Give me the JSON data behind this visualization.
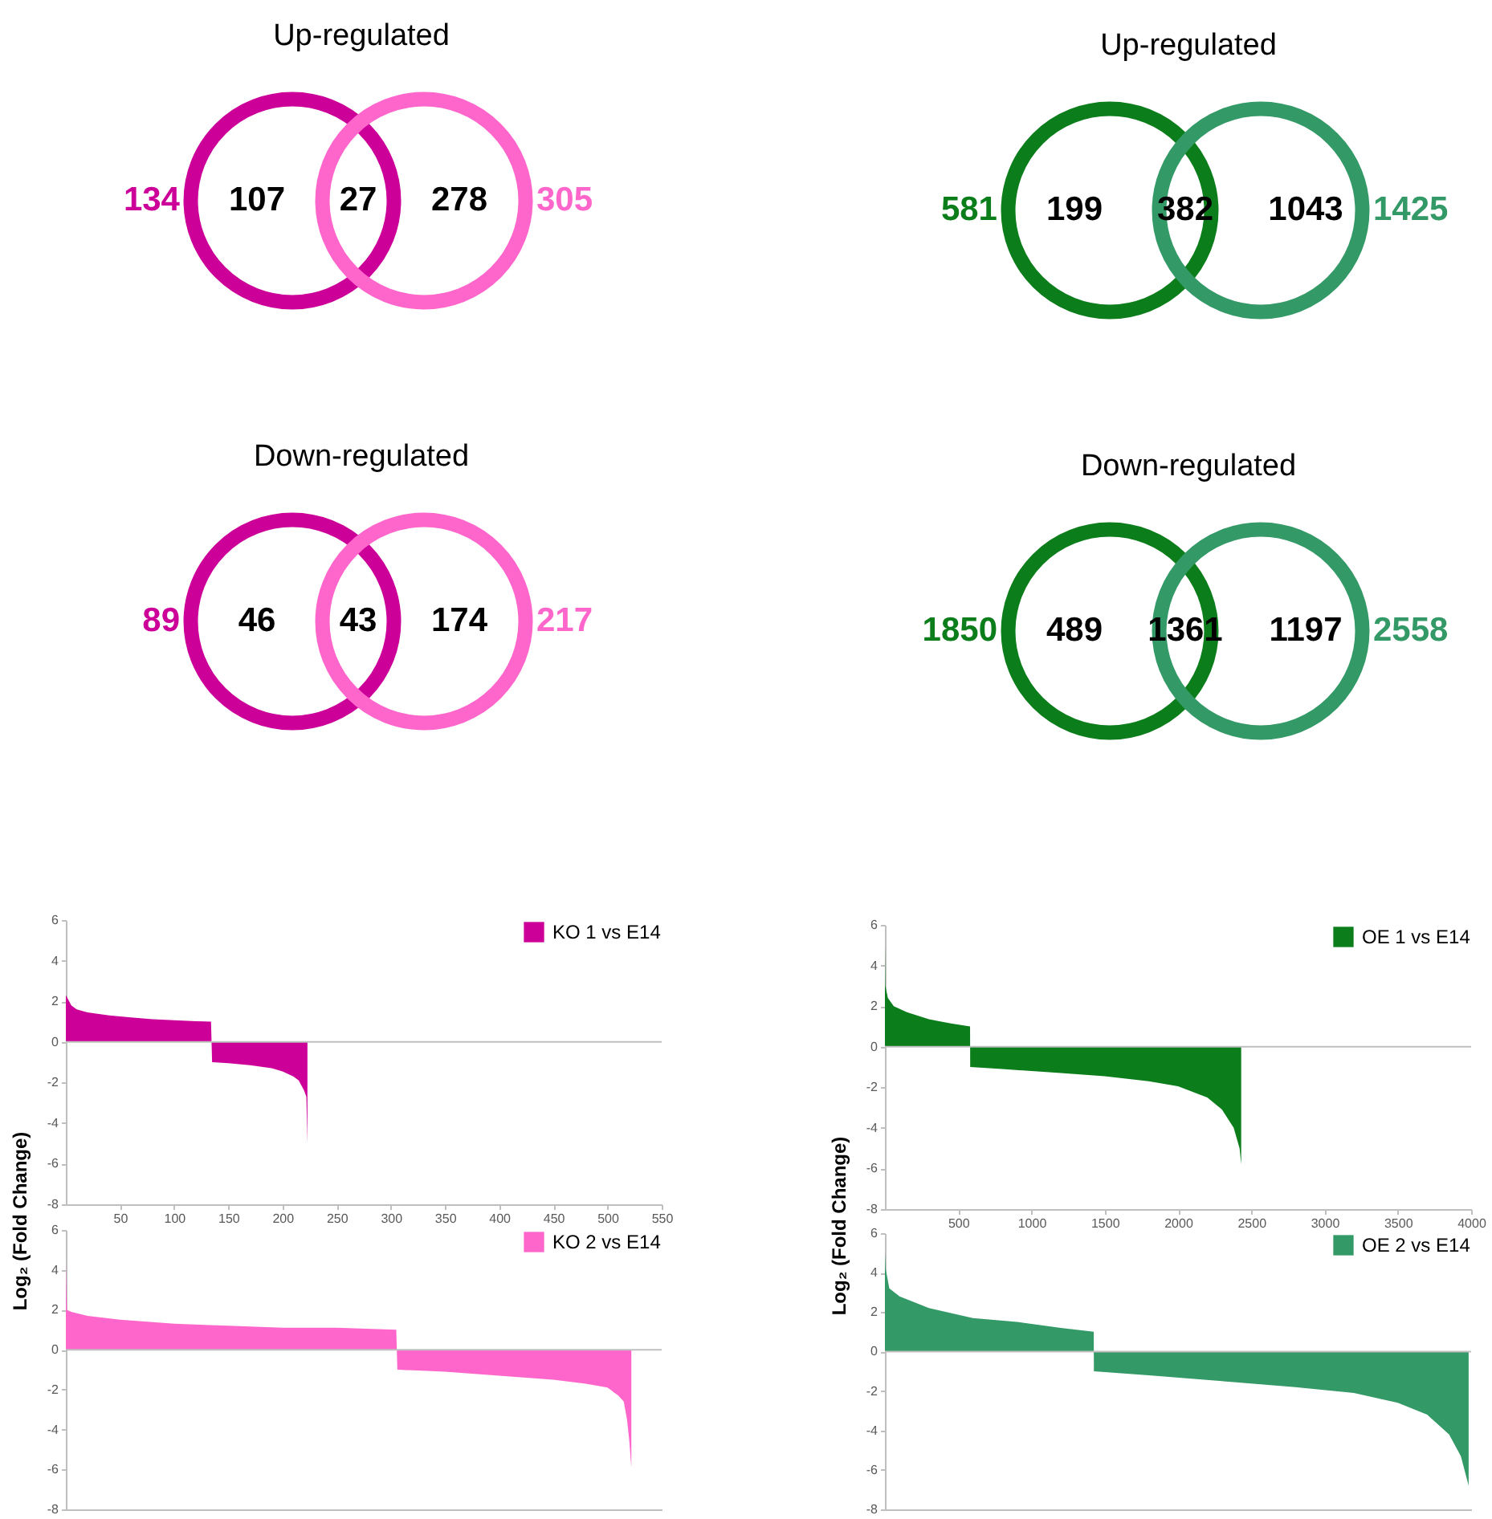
{
  "chart_data": [
    {
      "type": "other",
      "title": "Up-regulated",
      "categories": [
        null,
        null
      ],
      "values": [
        134,
        305
      ],
      "data_labels": true,
      "annotations": [
        "107",
        "27",
        "278"
      ],
      "colors": [
        "#cc0099",
        "#ff66cc"
      ]
    },
    {
      "type": "other",
      "title": "Up-regulated",
      "categories": [
        null,
        null
      ],
      "values": [
        581,
        1425
      ],
      "data_labels": true,
      "annotations": [
        "199",
        "382",
        "1043"
      ],
      "colors": [
        "#0b7d1a",
        "#339966"
      ]
    },
    {
      "type": "other",
      "title": "Down-regulated",
      "categories": [
        null,
        null
      ],
      "values": [
        89,
        217
      ],
      "data_labels": true,
      "annotations": [
        "46",
        "43",
        "174"
      ],
      "colors": [
        "#cc0099",
        "#ff66cc"
      ]
    },
    {
      "type": "other",
      "title": "Down-regulated",
      "categories": [
        null,
        null
      ],
      "values": [
        1850,
        2558
      ],
      "data_labels": true,
      "annotations": [
        "489",
        "1361",
        "1197"
      ],
      "colors": [
        "#0b7d1a",
        "#339966"
      ]
    },
    {
      "type": "area",
      "ylabel": "Log₂ (Fold Change)",
      "xlim": [
        0,
        550
      ],
      "xticks": [
        50,
        100,
        150,
        200,
        250,
        300,
        350,
        400,
        450,
        500,
        550
      ],
      "ylim": [
        -8,
        6
      ],
      "yticks": [
        -8,
        -6,
        -4,
        -2,
        0,
        2,
        4,
        6
      ],
      "legend": "top right",
      "ref_lines": [
        {
          "axis": "y",
          "value": 0,
          "color": "#bfbfbf"
        }
      ],
      "series": [
        {
          "name": "KO 1 vs E14",
          "color": "#cc0099",
          "x": [
            0,
            2,
            5,
            10,
            20,
            40,
            60,
            80,
            100,
            120,
            134,
            135,
            150,
            170,
            190,
            200,
            210,
            215,
            220,
            222,
            223
          ],
          "values": [
            2.3,
            2.1,
            1.8,
            1.6,
            1.45,
            1.3,
            1.2,
            1.12,
            1.07,
            1.02,
            1.0,
            -1.0,
            -1.05,
            -1.15,
            -1.3,
            -1.45,
            -1.7,
            -1.9,
            -2.4,
            -2.7,
            -5.0
          ]
        }
      ]
    },
    {
      "type": "area",
      "xlim": [
        0,
        4000
      ],
      "xticks": [
        500,
        1000,
        1500,
        2000,
        2500,
        3000,
        3500,
        4000
      ],
      "ylim": [
        -8,
        6
      ],
      "yticks": [
        -8,
        -6,
        -4,
        -2,
        0,
        2,
        4,
        6
      ],
      "ylabel": "Log₂ (Fold Change)",
      "legend": "top right",
      "ref_lines": [
        {
          "axis": "y",
          "value": 0,
          "color": "#bfbfbf"
        }
      ],
      "series": [
        {
          "name": "OE 1 vs E14",
          "color": "#0b7d1a",
          "x": [
            0,
            3,
            20,
            60,
            150,
            300,
            450,
            581,
            582,
            800,
            1200,
            1500,
            1800,
            2000,
            2200,
            2300,
            2380,
            2420,
            2431
          ],
          "values": [
            5.0,
            3.0,
            2.4,
            2.0,
            1.7,
            1.35,
            1.15,
            1.0,
            -1.0,
            -1.1,
            -1.3,
            -1.45,
            -1.7,
            -1.95,
            -2.5,
            -3.1,
            -4.0,
            -5.0,
            -5.8
          ]
        }
      ]
    },
    {
      "type": "area",
      "xlim": [
        0,
        550
      ],
      "ylim": [
        -8,
        6
      ],
      "yticks": [
        -8,
        -6,
        -4,
        -2,
        0,
        2,
        4,
        6
      ],
      "tick_labels": "y",
      "legend": "top right",
      "ref_lines": [
        {
          "axis": "y",
          "value": 0,
          "color": "#bfbfbf"
        }
      ],
      "series": [
        {
          "name": "KO 2 vs E14",
          "color": "#ff66cc",
          "x": [
            0,
            1,
            5,
            20,
            50,
            100,
            150,
            200,
            250,
            305,
            306,
            350,
            400,
            450,
            480,
            500,
            510,
            515,
            518,
            520,
            522
          ],
          "values": [
            4.3,
            2.0,
            1.9,
            1.7,
            1.5,
            1.3,
            1.2,
            1.1,
            1.1,
            1.0,
            -1.0,
            -1.1,
            -1.3,
            -1.5,
            -1.7,
            -1.9,
            -2.3,
            -2.6,
            -3.5,
            -4.5,
            -5.9
          ]
        }
      ]
    },
    {
      "type": "area",
      "xlim": [
        0,
        4000
      ],
      "ylim": [
        -8,
        6
      ],
      "yticks": [
        -8,
        -6,
        -4,
        -2,
        0,
        2,
        4,
        6
      ],
      "tick_labels": "y",
      "legend": "top right",
      "ref_lines": [
        {
          "axis": "y",
          "value": 0,
          "color": "#bfbfbf"
        }
      ],
      "series": [
        {
          "name": "OE 2 vs E14",
          "color": "#339966",
          "x": [
            0,
            5,
            30,
            100,
            300,
            600,
            900,
            1200,
            1425,
            1426,
            1800,
            2300,
            2800,
            3200,
            3500,
            3700,
            3850,
            3930,
            3983
          ],
          "values": [
            5.0,
            4.2,
            3.2,
            2.8,
            2.2,
            1.7,
            1.5,
            1.2,
            1.0,
            -1.0,
            -1.2,
            -1.5,
            -1.8,
            -2.1,
            -2.6,
            -3.2,
            -4.2,
            -5.3,
            -6.8
          ]
        }
      ]
    }
  ]
}
